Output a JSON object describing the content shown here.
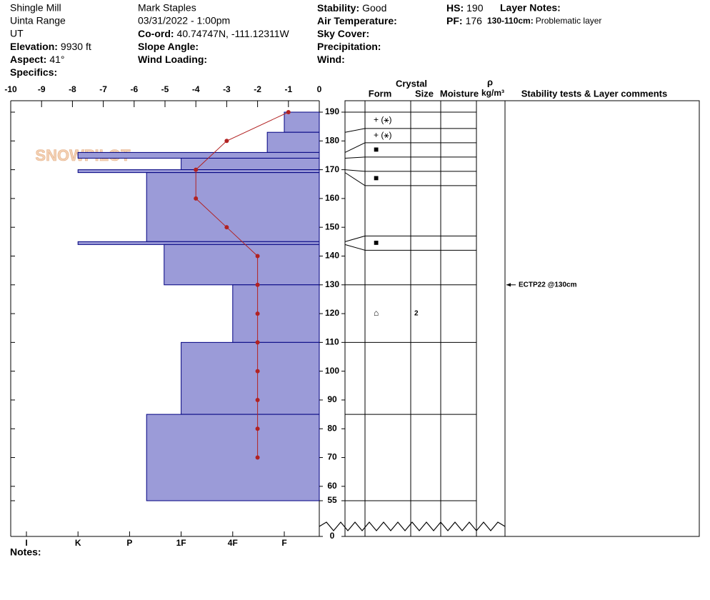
{
  "header": {
    "col1": [
      "Shingle Mill",
      "Uinta Range",
      "UT",
      {
        "label": "Elevation:",
        "value": "9930 ft"
      },
      {
        "label": "Aspect:",
        "value": "41°"
      },
      {
        "label": "Specifics:"
      }
    ],
    "col2": [
      "Mark Staples",
      "03/31/2022 - 1:00pm",
      {
        "label": "Co-ord:",
        "value": "40.74747N, -111.12311W"
      },
      {
        "label": "Slope Angle:"
      },
      {
        "label": "Wind Loading:"
      }
    ],
    "col3": [
      {
        "label": "Stability:",
        "value": "Good"
      },
      {
        "label": "Air Temperature:"
      },
      {
        "label": "Sky Cover:"
      },
      {
        "label": "Precipitation:"
      },
      {
        "label": "Wind:"
      }
    ],
    "col4": [
      {
        "label": "HS:",
        "value": 190
      },
      {
        "label": "PF:",
        "value": 176
      }
    ],
    "layer_notes": {
      "label": "Layer Notes:",
      "notes": [
        {
          "label": "130-110cm:",
          "value": "Problematic layer"
        }
      ]
    }
  },
  "chart_data": {
    "type": "snow-profile",
    "logo": "SNOWPILOT",
    "xlim": [
      -10,
      0
    ],
    "xticks": [
      -10,
      -9,
      -8,
      -7,
      -6,
      -5,
      -4,
      -3,
      -2,
      -1,
      0
    ],
    "ylim": [
      0,
      190
    ],
    "yticks": [
      190,
      180,
      170,
      160,
      150,
      140,
      130,
      120,
      110,
      100,
      90,
      80,
      70,
      60,
      55,
      0
    ],
    "hardness_ticks": [
      {
        "value": 6,
        "label": "I"
      },
      {
        "value": 5,
        "label": "K"
      },
      {
        "value": 4,
        "label": "P"
      },
      {
        "value": 3,
        "label": "1F"
      },
      {
        "value": 2,
        "label": "4F"
      },
      {
        "value": 1,
        "label": "F"
      }
    ],
    "layer_color": "#9b9bd8",
    "layers": {
      "top": [
        190,
        183,
        176,
        174,
        170,
        169,
        145,
        144,
        130,
        110,
        85
      ],
      "bottom": [
        183,
        176,
        174,
        170,
        169,
        145,
        144,
        130,
        110,
        85,
        55
      ],
      "hardness": [
        1,
        1.33,
        5,
        3,
        5,
        3.67,
        5,
        3.33,
        2,
        3,
        3.67
      ],
      "form": [
        "+ (⚹)",
        "+ (⚹)",
        "■",
        null,
        "■",
        null,
        "■",
        null,
        "⌂",
        null,
        null
      ],
      "size": [
        null,
        null,
        null,
        null,
        null,
        null,
        null,
        null,
        2,
        null,
        null
      ]
    },
    "temperature": {
      "color": "#b22222",
      "depth": [
        190,
        180,
        170,
        160,
        150,
        140,
        130,
        120,
        110,
        100,
        90,
        80,
        70
      ],
      "values": [
        -1,
        -3,
        -4,
        -4,
        -3,
        -2,
        -2,
        -2,
        -2,
        -2,
        -2,
        -2,
        -2
      ]
    },
    "column_headers": {
      "crystal": "Crystal",
      "form": "Form",
      "size": "Size",
      "moisture": "Moisture",
      "rho": "ρ",
      "density_unit": "kg/m³",
      "comments": "Stability tests & Layer comments"
    },
    "comments": [
      {
        "text": "ECTP22 @130cm",
        "height": 130
      }
    ],
    "notes_label": "Notes:"
  }
}
